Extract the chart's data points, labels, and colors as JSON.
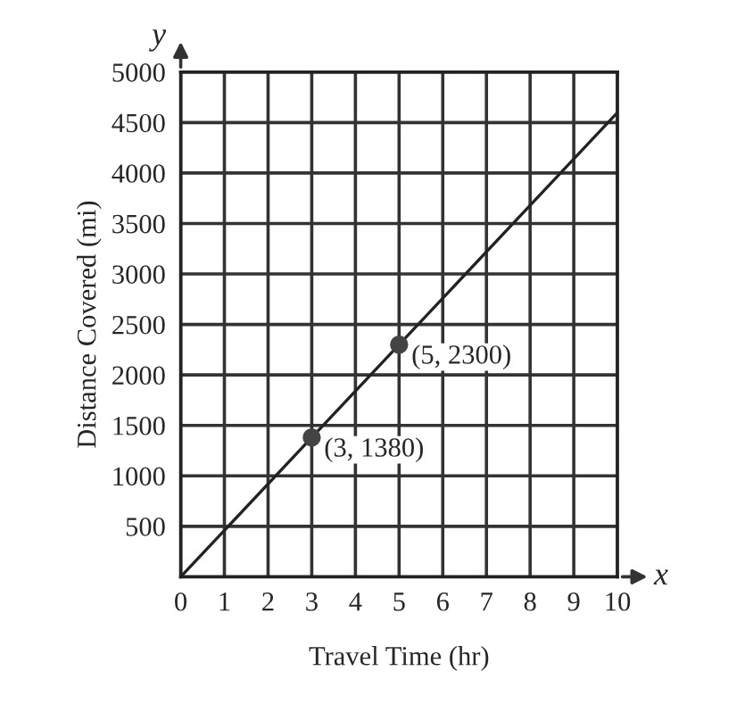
{
  "chart_data": {
    "type": "line",
    "xlabel": "Travel Time (hr)",
    "ylabel": "Distance Covered (mi)",
    "series": [
      {
        "type": "line",
        "color": "#222222",
        "x": [
          0,
          10
        ],
        "values": [
          0,
          4600
        ]
      },
      {
        "type": "scatter",
        "color": "#444444",
        "x": [
          3,
          5
        ],
        "values": [
          1380,
          2300
        ],
        "marker": "circle"
      }
    ],
    "annotations": [
      {
        "text": "(3, 1380)",
        "x": 3,
        "y": 1380
      },
      {
        "text": "(5, 2300)",
        "x": 5,
        "y": 2300
      },
      "x",
      "y"
    ],
    "xlim": [
      0,
      10
    ],
    "ylim": [
      0,
      5000
    ],
    "xticks": [
      0,
      1,
      2,
      3,
      4,
      5,
      6,
      7,
      8,
      9,
      10
    ],
    "yticks": [
      500,
      1000,
      1500,
      2000,
      2500,
      3000,
      3500,
      4000,
      4500,
      5000
    ],
    "grid": true
  }
}
